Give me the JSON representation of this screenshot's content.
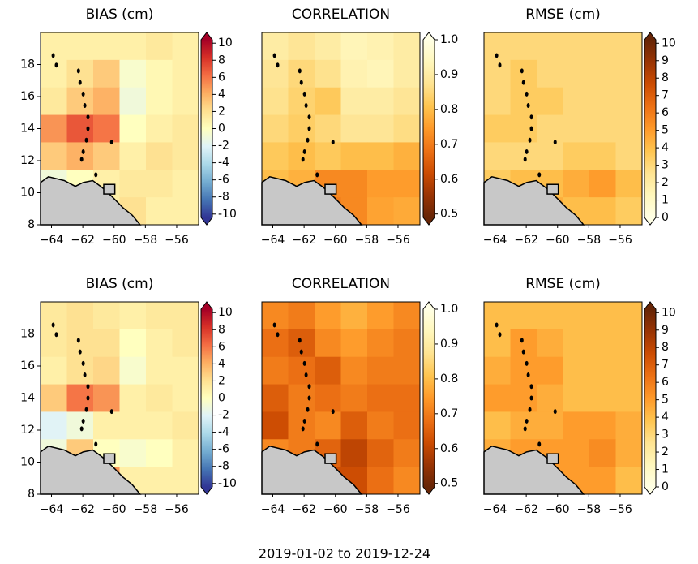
{
  "footer": "2019-01-02 to 2019-12-24",
  "chart_data": [
    {
      "type": "heatmap",
      "title": "BIAS (cm)",
      "xlim": [
        -64.7,
        -54.6
      ],
      "ylim": [
        8,
        20
      ],
      "xticks": [
        {
          "value": -64,
          "label": "−64"
        },
        {
          "value": -62,
          "label": "−62"
        },
        {
          "value": -60,
          "label": "−60"
        },
        {
          "value": -58,
          "label": "−58"
        },
        {
          "value": -56,
          "label": "−56"
        }
      ],
      "yticks": [
        8,
        10,
        12,
        14,
        16,
        18
      ],
      "clim": [
        -10.4,
        10.4
      ],
      "cticks": [
        -10,
        -8,
        -6,
        -4,
        -2,
        0,
        2,
        4,
        6,
        8,
        10
      ],
      "extend": "both",
      "cmap": [
        "#313695",
        "#4575b4",
        "#74add1",
        "#abd9e9",
        "#e0f3f8",
        "#ffffbf",
        "#fee090",
        "#fdae61",
        "#f46d43",
        "#d73027",
        "#a50026"
      ],
      "z": [
        [
          1,
          1,
          1,
          1,
          1.5,
          1
        ],
        [
          1,
          2,
          3,
          -0.5,
          0.5,
          1
        ],
        [
          1.5,
          3,
          4,
          -1,
          0.5,
          1
        ],
        [
          5,
          7,
          6,
          0,
          1,
          1.5
        ],
        [
          3,
          4,
          3,
          1,
          2,
          1.5
        ],
        [
          -1,
          0,
          1,
          1.5,
          1.5,
          1
        ],
        [
          0,
          0,
          1,
          2,
          1,
          1
        ]
      ]
    },
    {
      "type": "heatmap",
      "title": "CORRELATION",
      "xlim": [
        -64.7,
        -54.6
      ],
      "ylim": [
        8,
        20
      ],
      "xticks": [
        {
          "value": -64,
          "label": "−64"
        },
        {
          "value": -62,
          "label": "−62"
        },
        {
          "value": -60,
          "label": "−60"
        },
        {
          "value": -58,
          "label": "−58"
        },
        {
          "value": -56,
          "label": "−56"
        }
      ],
      "clim": [
        0.49,
        1.0
      ],
      "cticks": [
        0.5,
        0.6,
        0.7,
        0.8,
        0.9,
        {
          "value": 1,
          "label": "1.0"
        }
      ],
      "extend": "both",
      "cmap": [
        "#662506",
        "#993404",
        "#cc4c02",
        "#ec7014",
        "#fe9929",
        "#fec44f",
        "#fee391",
        "#fff7bc",
        "#ffffe5"
      ],
      "z": [
        [
          0.9,
          0.88,
          0.9,
          0.93,
          0.92,
          0.9
        ],
        [
          0.88,
          0.85,
          0.87,
          0.92,
          0.93,
          0.9
        ],
        [
          0.87,
          0.84,
          0.82,
          0.9,
          0.9,
          0.88
        ],
        [
          0.85,
          0.83,
          0.85,
          0.88,
          0.88,
          0.86
        ],
        [
          0.82,
          0.8,
          0.82,
          0.8,
          0.8,
          0.78
        ],
        [
          0.8,
          0.78,
          0.72,
          0.72,
          0.75,
          0.75
        ],
        [
          0.8,
          0.75,
          0.7,
          0.72,
          0.76,
          0.77
        ]
      ]
    },
    {
      "type": "heatmap",
      "title": "RMSE (cm)",
      "xlim": [
        -64.7,
        -54.6
      ],
      "ylim": [
        8,
        20
      ],
      "xticks": [
        {
          "value": -64,
          "label": "−64"
        },
        {
          "value": -62,
          "label": "−62"
        },
        {
          "value": -60,
          "label": "−60"
        },
        {
          "value": -58,
          "label": "−58"
        },
        {
          "value": -56,
          "label": "−56"
        }
      ],
      "clim": [
        0,
        10.2
      ],
      "cticks": [
        0,
        1,
        2,
        3,
        4,
        5,
        6,
        7,
        8,
        9,
        10
      ],
      "extend": "both",
      "cmap": [
        "#ffffe5",
        "#fff7bc",
        "#fee391",
        "#fec44f",
        "#fe9929",
        "#ec7014",
        "#cc4c02",
        "#993404",
        "#662506"
      ],
      "z": [
        [
          3,
          3,
          3,
          3,
          3,
          3
        ],
        [
          3,
          3.5,
          3,
          3,
          3,
          3
        ],
        [
          3,
          3.5,
          3.5,
          3,
          3,
          3
        ],
        [
          3.5,
          3.5,
          3,
          3,
          3,
          3
        ],
        [
          3,
          3,
          3,
          3.5,
          3.5,
          3
        ],
        [
          3.5,
          4,
          4,
          4.5,
          5,
          4
        ],
        [
          3,
          4,
          4.5,
          4,
          4,
          3.5
        ]
      ]
    },
    {
      "type": "heatmap",
      "title": "BIAS (cm)",
      "xlim": [
        -64.7,
        -54.6
      ],
      "ylim": [
        8,
        20
      ],
      "xticks": [
        {
          "value": -64,
          "label": "−64"
        },
        {
          "value": -62,
          "label": "−62"
        },
        {
          "value": -60,
          "label": "−60"
        },
        {
          "value": -58,
          "label": "−58"
        },
        {
          "value": -56,
          "label": "−56"
        }
      ],
      "yticks": [
        8,
        10,
        12,
        14,
        16,
        18
      ],
      "clim": [
        -10.4,
        10.4
      ],
      "cticks": [
        -10,
        -8,
        -6,
        -4,
        -2,
        0,
        2,
        4,
        6,
        8,
        10
      ],
      "extend": "both",
      "cmap": [
        "#313695",
        "#4575b4",
        "#74add1",
        "#abd9e9",
        "#e0f3f8",
        "#ffffbf",
        "#fee090",
        "#fdae61",
        "#f46d43",
        "#d73027",
        "#a50026"
      ],
      "z": [
        [
          1.5,
          2,
          1.5,
          1,
          1.5,
          1.5
        ],
        [
          1.5,
          2,
          2,
          0,
          1,
          1.5
        ],
        [
          1,
          2,
          2.5,
          -0.5,
          1,
          1
        ],
        [
          3,
          6,
          5,
          1,
          1.5,
          1
        ],
        [
          -2,
          -1,
          1,
          1,
          1,
          1.5
        ],
        [
          -1,
          3,
          0,
          -0.5,
          0,
          1
        ],
        [
          0,
          0,
          5,
          1,
          1,
          1
        ]
      ]
    },
    {
      "type": "heatmap",
      "title": "CORRELATION",
      "xlim": [
        -64.7,
        -54.6
      ],
      "ylim": [
        8,
        20
      ],
      "xticks": [
        {
          "value": -64,
          "label": "−64"
        },
        {
          "value": -62,
          "label": "−62"
        },
        {
          "value": -60,
          "label": "−60"
        },
        {
          "value": -58,
          "label": "−58"
        },
        {
          "value": -56,
          "label": "−56"
        }
      ],
      "clim": [
        0.49,
        1.0
      ],
      "cticks": [
        0.5,
        0.6,
        0.7,
        0.8,
        0.9,
        {
          "value": 1,
          "label": "1.0"
        }
      ],
      "extend": "both",
      "cmap": [
        "#662506",
        "#993404",
        "#cc4c02",
        "#ec7014",
        "#fe9929",
        "#fec44f",
        "#fee391",
        "#fff7bc",
        "#ffffe5"
      ],
      "z": [
        [
          0.72,
          0.7,
          0.75,
          0.78,
          0.75,
          0.72
        ],
        [
          0.68,
          0.65,
          0.72,
          0.75,
          0.72,
          0.7
        ],
        [
          0.7,
          0.68,
          0.65,
          0.72,
          0.7,
          0.7
        ],
        [
          0.65,
          0.7,
          0.68,
          0.7,
          0.68,
          0.68
        ],
        [
          0.62,
          0.7,
          0.72,
          0.65,
          0.7,
          0.68
        ],
        [
          0.72,
          0.7,
          0.66,
          0.6,
          0.66,
          0.7
        ],
        [
          0.75,
          0.7,
          0.62,
          0.62,
          0.68,
          0.72
        ]
      ]
    },
    {
      "type": "heatmap",
      "title": "RMSE (cm)",
      "xlim": [
        -64.7,
        -54.6
      ],
      "ylim": [
        8,
        20
      ],
      "xticks": [
        {
          "value": -64,
          "label": "−64"
        },
        {
          "value": -62,
          "label": "−62"
        },
        {
          "value": -60,
          "label": "−60"
        },
        {
          "value": -58,
          "label": "−58"
        },
        {
          "value": -56,
          "label": "−56"
        }
      ],
      "clim": [
        0,
        10.2
      ],
      "cticks": [
        0,
        1,
        2,
        3,
        4,
        5,
        6,
        7,
        8,
        9,
        10
      ],
      "extend": "both",
      "cmap": [
        "#ffffe5",
        "#fff7bc",
        "#fee391",
        "#fec44f",
        "#fe9929",
        "#ec7014",
        "#cc4c02",
        "#993404",
        "#662506"
      ],
      "z": [
        [
          4,
          4,
          4,
          4,
          4,
          4
        ],
        [
          4,
          5,
          4.5,
          4,
          4,
          4
        ],
        [
          4.5,
          5,
          5,
          4,
          4,
          4
        ],
        [
          5,
          5,
          4.5,
          4,
          4,
          4
        ],
        [
          4,
          4.5,
          4.5,
          5,
          5,
          4.5
        ],
        [
          4.5,
          5,
          5,
          5,
          5.5,
          4.5
        ],
        [
          4,
          4.5,
          5,
          5,
          5,
          4
        ]
      ]
    }
  ]
}
